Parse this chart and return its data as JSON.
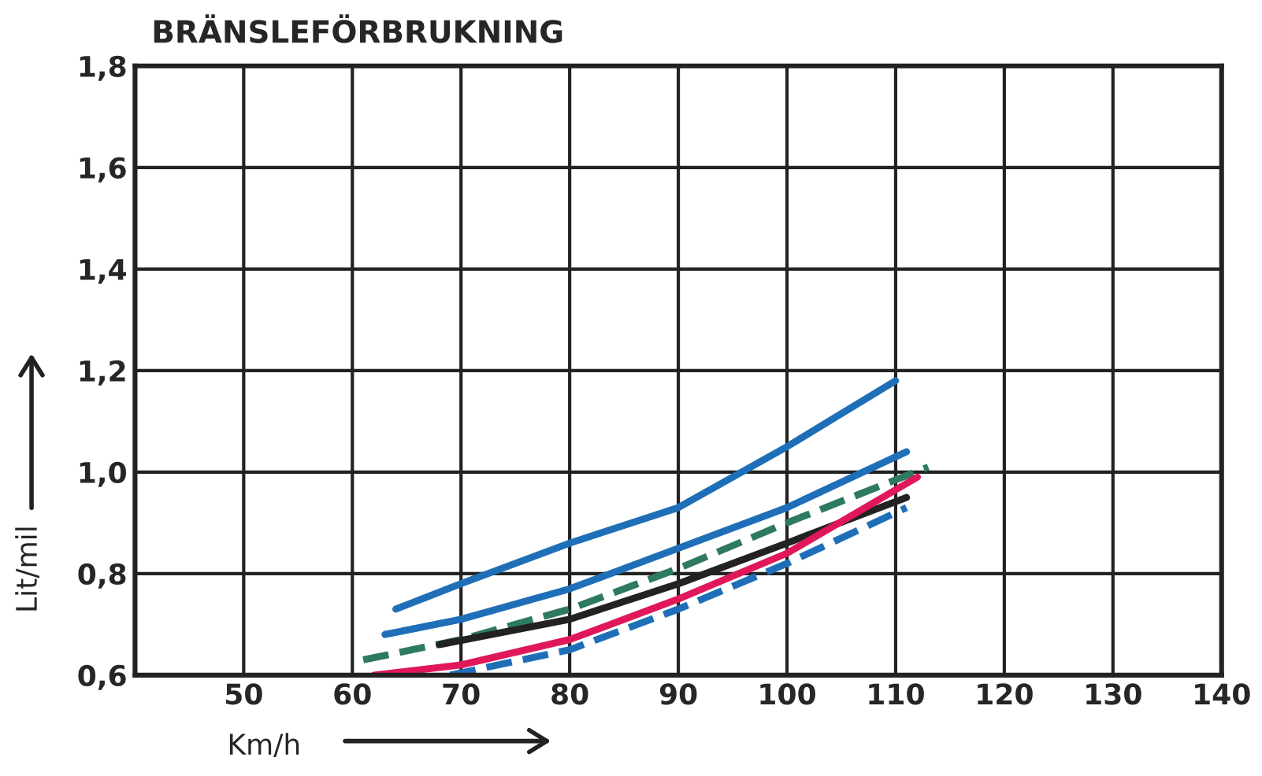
{
  "chart_data": {
    "type": "line",
    "title": "BRÄNSLEFÖRBRUKNING",
    "xlabel": "Km/h",
    "ylabel": "Lit/mil",
    "xlim": [
      40,
      140
    ],
    "xticks": [
      50,
      60,
      70,
      80,
      90,
      100,
      110,
      120,
      130,
      140
    ],
    "ylim": [
      0.6,
      1.8
    ],
    "yticks": [
      {
        "value": 0.6,
        "label": "0,6"
      },
      {
        "value": 0.8,
        "label": "0,8"
      },
      {
        "value": 1.0,
        "label": "1,0"
      },
      {
        "value": 1.2,
        "label": "1,2"
      },
      {
        "value": 1.4,
        "label": "1,4"
      },
      {
        "value": 1.6,
        "label": "1,6"
      },
      {
        "value": 1.8,
        "label": "1,8"
      }
    ],
    "grid": true,
    "marker": "none",
    "series": [
      {
        "color": "#1f6fb8",
        "line_style": "solid",
        "x": [
          64,
          70,
          80,
          90,
          100,
          110
        ],
        "values": [
          0.73,
          0.78,
          0.86,
          0.93,
          1.05,
          1.18
        ]
      },
      {
        "color": "#1f6fb8",
        "line_style": "solid",
        "x": [
          63,
          70,
          80,
          90,
          100,
          111
        ],
        "values": [
          0.68,
          0.71,
          0.77,
          0.85,
          0.93,
          1.04
        ]
      },
      {
        "color": "#2e7a5e",
        "line_style": "dashed",
        "x": [
          61,
          70,
          80,
          90,
          100,
          113
        ],
        "values": [
          0.63,
          0.67,
          0.73,
          0.81,
          0.9,
          1.01
        ]
      },
      {
        "color": "#222222",
        "line_style": "solid",
        "x": [
          68,
          80,
          90,
          100,
          111
        ],
        "values": [
          0.66,
          0.71,
          0.78,
          0.86,
          0.95
        ]
      },
      {
        "color": "#e0185a",
        "line_style": "solid",
        "x": [
          62,
          70,
          80,
          90,
          100,
          112
        ],
        "values": [
          0.6,
          0.62,
          0.67,
          0.75,
          0.84,
          0.99
        ]
      },
      {
        "color": "#1f6fb8",
        "line_style": "dashed",
        "x": [
          69,
          80,
          90,
          100,
          111
        ],
        "values": [
          0.6,
          0.65,
          0.73,
          0.82,
          0.93
        ]
      }
    ]
  }
}
